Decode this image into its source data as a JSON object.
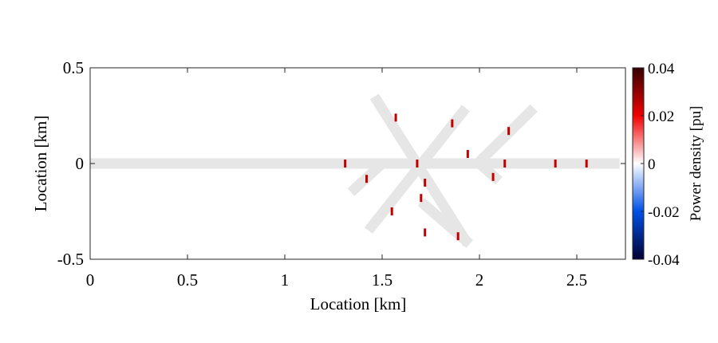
{
  "chart_data": {
    "type": "network",
    "xlabel": "Location [km]",
    "ylabel": "Location [km]",
    "xlim": [
      0,
      2.75
    ],
    "ylim": [
      -0.5,
      0.5
    ],
    "xticks": [
      0,
      0.5,
      1,
      1.5,
      2,
      2.5
    ],
    "yticks": [
      0.5,
      0,
      -0.5
    ],
    "branch_color": "#e6e6e6",
    "branches": [
      {
        "x": [
          0,
          2.72
        ],
        "y": [
          0,
          0
        ]
      },
      {
        "x": [
          1.46,
          1.94
        ],
        "y": [
          0.35,
          -0.42
        ]
      },
      {
        "x": [
          1.93,
          1.43
        ],
        "y": [
          0.29,
          -0.35
        ]
      },
      {
        "x": [
          2.28,
          1.99
        ],
        "y": [
          0.29,
          0
        ]
      },
      {
        "x": [
          1.5,
          1.34
        ],
        "y": [
          0,
          -0.15
        ]
      },
      {
        "x": [
          2.0,
          2.1
        ],
        "y": [
          0,
          -0.09
        ]
      },
      {
        "x": [
          1.7,
          1.95
        ],
        "y": [
          -0.2,
          -0.42
        ]
      }
    ],
    "markers": {
      "x": [
        1.31,
        1.68,
        2.13,
        2.39,
        2.55,
        1.57,
        1.86,
        2.15,
        1.94,
        1.42,
        1.72,
        2.07,
        1.7,
        1.55,
        1.72,
        1.89
      ],
      "y": [
        0,
        0,
        0,
        0,
        0,
        0.24,
        0.21,
        0.17,
        0.05,
        -0.08,
        -0.1,
        -0.07,
        -0.18,
        -0.25,
        -0.36,
        -0.38
      ],
      "values": [
        0.025,
        0.025,
        0.025,
        0.025,
        0.025,
        0.025,
        0.025,
        0.025,
        0.025,
        0.025,
        0.025,
        0.025,
        0.025,
        0.025,
        0.025,
        0.025
      ]
    },
    "colorbar": {
      "label": "Power density [pu]",
      "clim": [
        -0.04,
        0.04
      ],
      "ticks": [
        0.04,
        0.02,
        0,
        -0.02,
        -0.04
      ]
    }
  }
}
